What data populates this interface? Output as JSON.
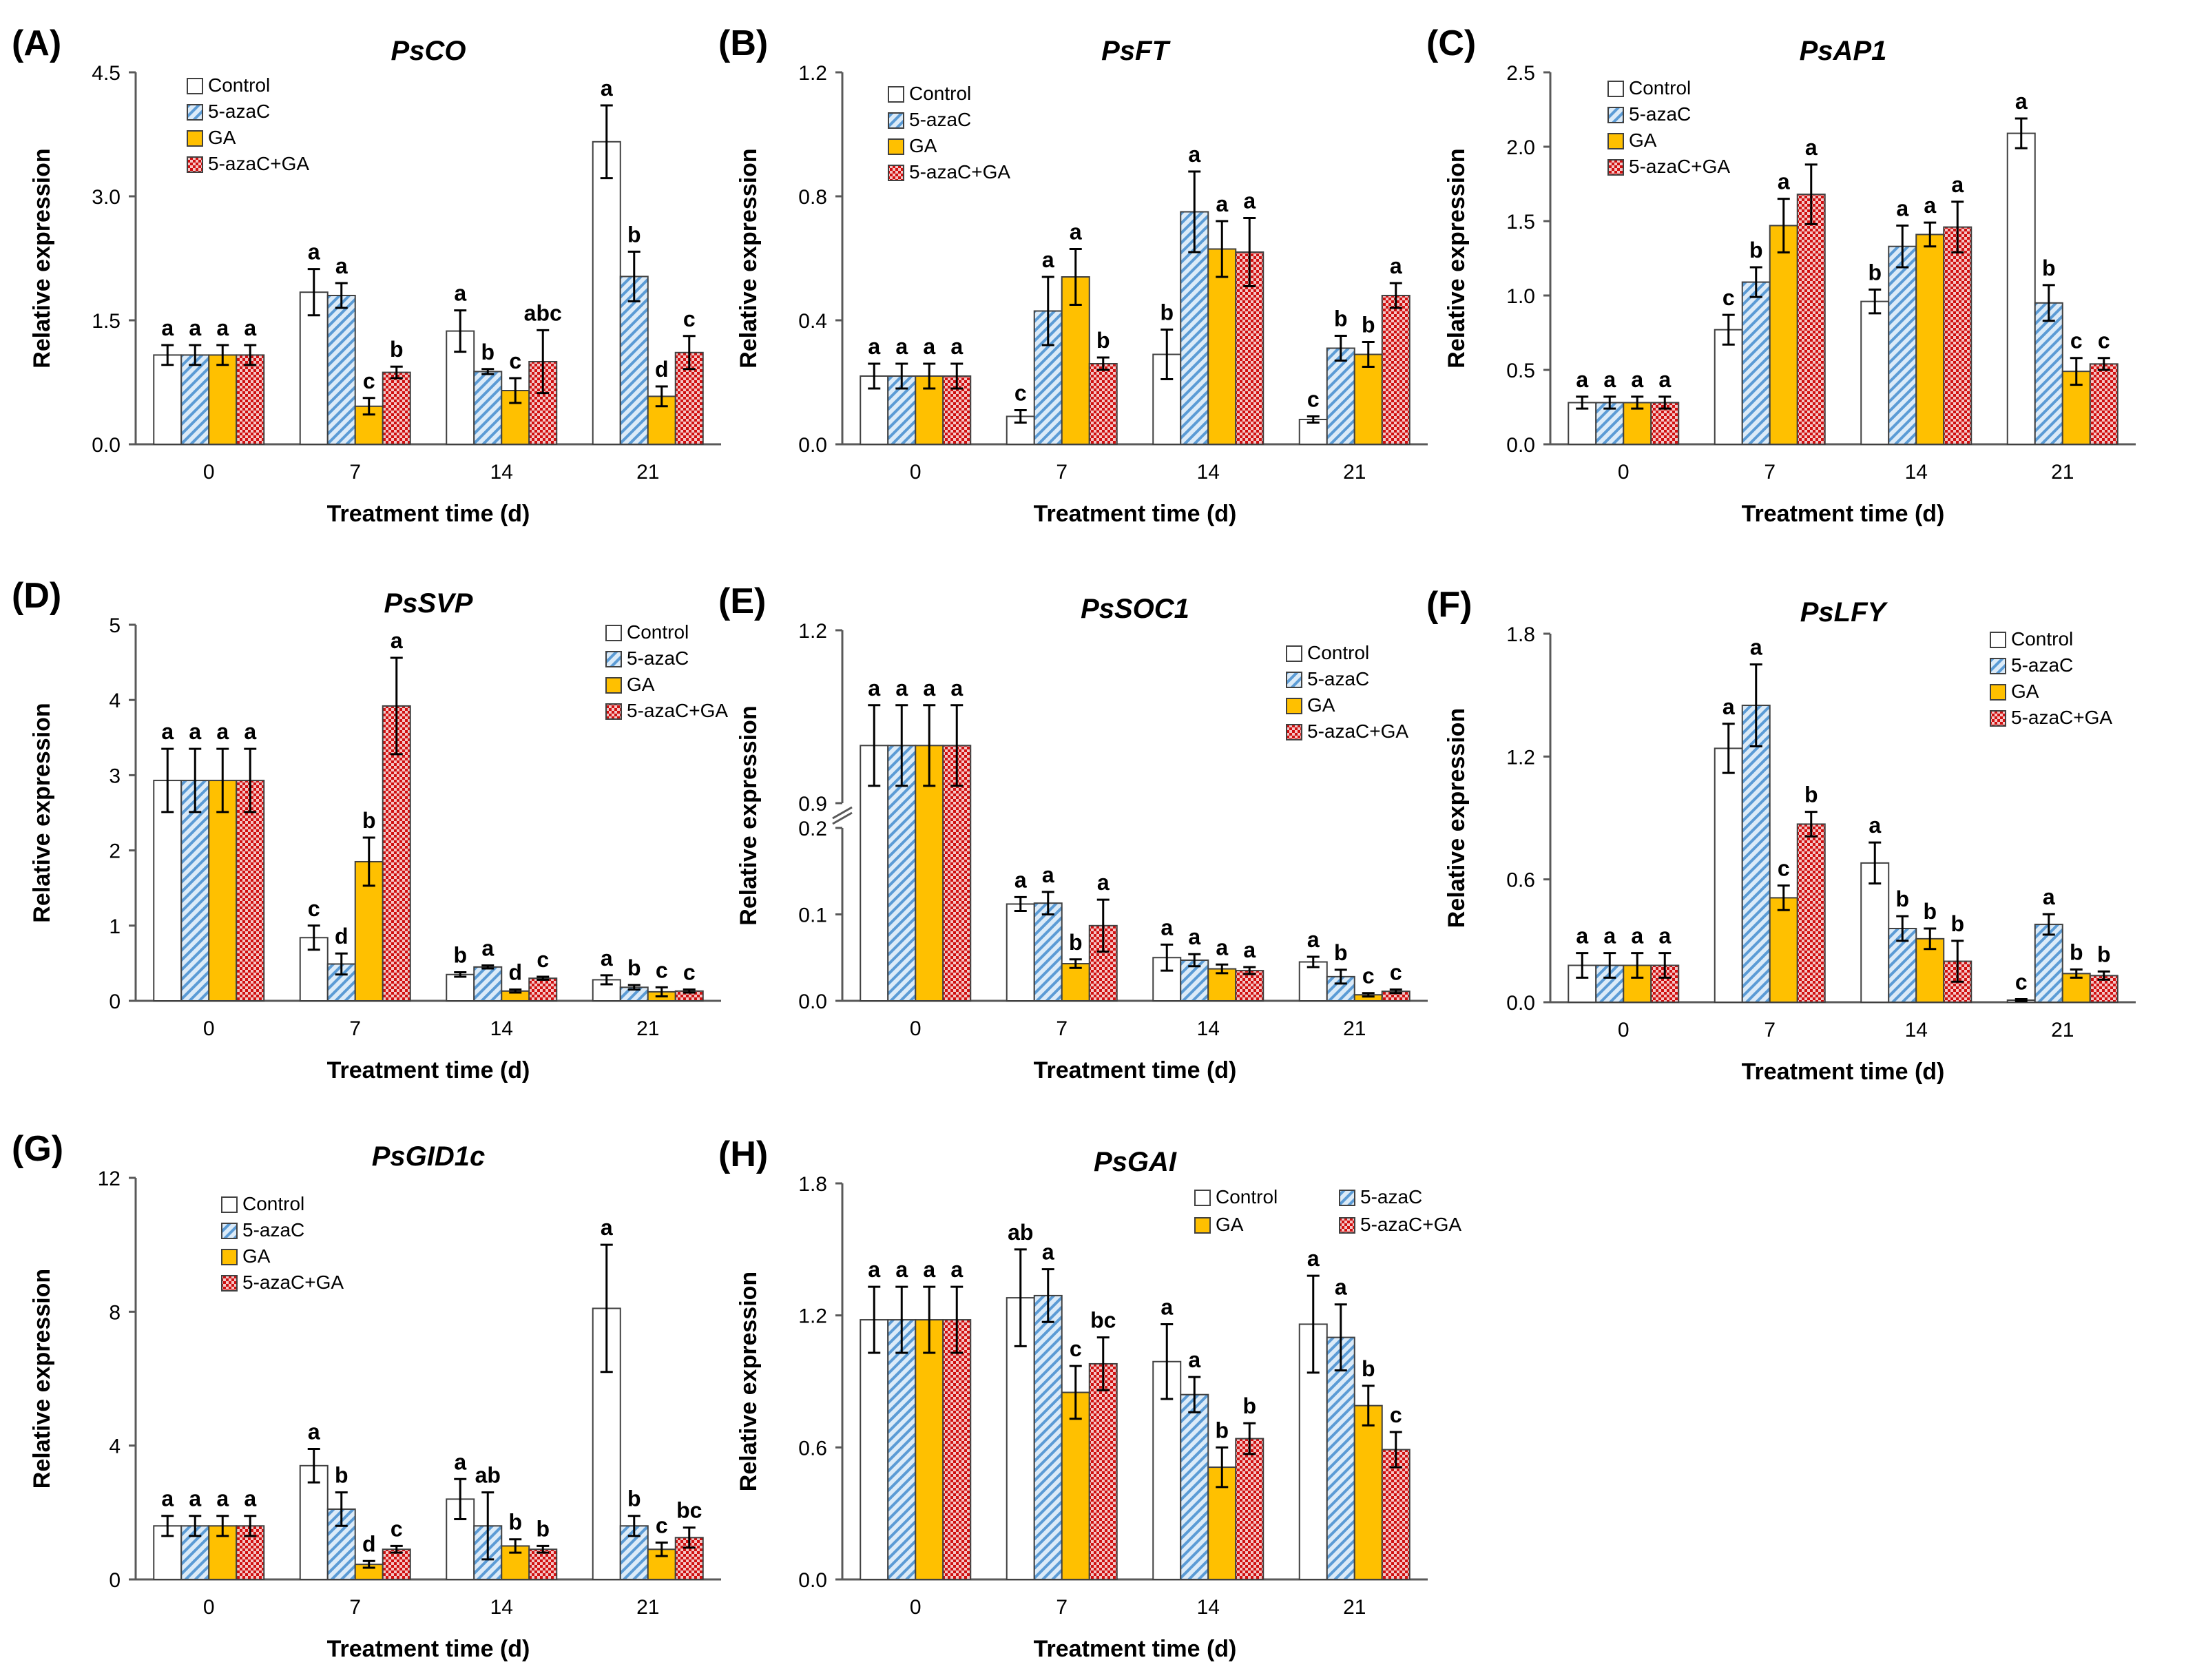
{
  "figure": {
    "legend_labels": [
      "Control",
      "5-azaC",
      "GA",
      "5-azaC+GA"
    ],
    "series_colors": {
      "control": "#ffffff",
      "azac": "#cfe3f5",
      "ga": "#ffc000",
      "azacga": "#f2b5b5"
    },
    "accent_colors": {
      "azac_stripe": "#5b9bd5",
      "azacga_dot": "#c00000",
      "axis": "#595959",
      "text": "#000000"
    }
  },
  "chart_data": [
    {
      "panel": "(A)",
      "title": "PsCO",
      "type": "bar",
      "xlabel": "Treatment time (d)",
      "ylabel": "Relative expression",
      "categories": [
        "0",
        "7",
        "14",
        "21"
      ],
      "ylim": [
        0,
        4.5
      ],
      "yticks": [
        "0.0",
        "1.5",
        "3.0",
        "4.5"
      ],
      "legend_position": "top-left",
      "series": [
        {
          "name": "Control",
          "values": [
            1.08,
            1.84,
            1.37,
            3.66
          ],
          "errors": [
            0.12,
            0.28,
            0.25,
            0.44
          ],
          "labels": [
            "a",
            "a",
            "a",
            "a"
          ]
        },
        {
          "name": "5-azaC",
          "values": [
            1.08,
            1.8,
            0.88,
            2.03
          ],
          "errors": [
            0.12,
            0.15,
            0.03,
            0.3
          ],
          "labels": [
            "a",
            "a",
            "b",
            "b"
          ]
        },
        {
          "name": "GA",
          "values": [
            1.08,
            0.46,
            0.65,
            0.58
          ],
          "errors": [
            0.12,
            0.1,
            0.15,
            0.12
          ],
          "labels": [
            "a",
            "c",
            "c",
            "d"
          ]
        },
        {
          "name": "5-azaC+GA",
          "values": [
            1.08,
            0.87,
            1.0,
            1.11
          ],
          "errors": [
            0.12,
            0.07,
            0.38,
            0.2
          ],
          "labels": [
            "a",
            "b",
            "abc",
            "c"
          ]
        }
      ]
    },
    {
      "panel": "(B)",
      "title": "PsFT",
      "type": "bar",
      "xlabel": "Treatment time (d)",
      "ylabel": "Relative expression",
      "categories": [
        "0",
        "7",
        "14",
        "21"
      ],
      "ylim": [
        0,
        1.2
      ],
      "yticks": [
        "0.0",
        "0.4",
        "0.8",
        "1.2"
      ],
      "legend_position": "top-left",
      "series": [
        {
          "name": "Control",
          "values": [
            0.22,
            0.09,
            0.29,
            0.08
          ],
          "errors": [
            0.04,
            0.02,
            0.08,
            0.01
          ],
          "labels": [
            "a",
            "c",
            "b",
            "c"
          ]
        },
        {
          "name": "5-azaC",
          "values": [
            0.22,
            0.43,
            0.75,
            0.31
          ],
          "errors": [
            0.04,
            0.11,
            0.13,
            0.04
          ],
          "labels": [
            "a",
            "a",
            "a",
            "b"
          ]
        },
        {
          "name": "GA",
          "values": [
            0.22,
            0.54,
            0.63,
            0.29
          ],
          "errors": [
            0.04,
            0.09,
            0.09,
            0.04
          ],
          "labels": [
            "a",
            "a",
            "a",
            "b"
          ]
        },
        {
          "name": "5-azaC+GA",
          "values": [
            0.22,
            0.26,
            0.62,
            0.48
          ],
          "errors": [
            0.04,
            0.02,
            0.11,
            0.04
          ],
          "labels": [
            "a",
            "b",
            "a",
            "a"
          ]
        }
      ]
    },
    {
      "panel": "(C)",
      "title": "PsAP1",
      "type": "bar",
      "xlabel": "Treatment time (d)",
      "ylabel": "Relative expression",
      "categories": [
        "0",
        "7",
        "14",
        "21"
      ],
      "ylim": [
        0,
        2.5
      ],
      "yticks": [
        "0.0",
        "0.5",
        "1.0",
        "1.5",
        "2.0",
        "2.5"
      ],
      "legend_position": "top-left",
      "series": [
        {
          "name": "Control",
          "values": [
            0.28,
            0.77,
            0.96,
            2.09
          ],
          "errors": [
            0.04,
            0.1,
            0.08,
            0.1
          ],
          "labels": [
            "a",
            "c",
            "b",
            "a"
          ]
        },
        {
          "name": "5-azaC",
          "values": [
            0.28,
            1.09,
            1.33,
            0.95
          ],
          "errors": [
            0.04,
            0.1,
            0.14,
            0.12
          ],
          "labels": [
            "a",
            "b",
            "a",
            "b"
          ]
        },
        {
          "name": "GA",
          "values": [
            0.28,
            1.47,
            1.41,
            0.49
          ],
          "errors": [
            0.04,
            0.18,
            0.08,
            0.09
          ],
          "labels": [
            "a",
            "a",
            "a",
            "c"
          ]
        },
        {
          "name": "5-azaC+GA",
          "values": [
            0.28,
            1.68,
            1.46,
            0.54
          ],
          "errors": [
            0.04,
            0.2,
            0.17,
            0.04
          ],
          "labels": [
            "a",
            "a",
            "a",
            "c"
          ]
        }
      ]
    },
    {
      "panel": "(D)",
      "title": "PsSVP",
      "type": "bar",
      "xlabel": "Treatment time (d)",
      "ylabel": "Relative expression",
      "categories": [
        "0",
        "7",
        "14",
        "21"
      ],
      "ylim": [
        0,
        5
      ],
      "yticks": [
        "0",
        "1",
        "2",
        "3",
        "4",
        "5"
      ],
      "legend_position": "top-right",
      "series": [
        {
          "name": "Control",
          "values": [
            2.93,
            0.84,
            0.35,
            0.28
          ],
          "errors": [
            0.42,
            0.16,
            0.03,
            0.06
          ],
          "labels": [
            "a",
            "c",
            "b",
            "a"
          ]
        },
        {
          "name": "5-azaC",
          "values": [
            2.93,
            0.49,
            0.45,
            0.18
          ],
          "errors": [
            0.42,
            0.14,
            0.02,
            0.03
          ],
          "labels": [
            "a",
            "d",
            "a",
            "b"
          ]
        },
        {
          "name": "GA",
          "values": [
            2.93,
            1.85,
            0.13,
            0.12
          ],
          "errors": [
            0.42,
            0.32,
            0.02,
            0.06
          ],
          "labels": [
            "a",
            "b",
            "d",
            "c"
          ]
        },
        {
          "name": "5-azaC+GA",
          "values": [
            2.93,
            3.92,
            0.3,
            0.13
          ],
          "errors": [
            0.42,
            0.64,
            0.02,
            0.02
          ],
          "labels": [
            "a",
            "a",
            "c",
            "c"
          ]
        }
      ]
    },
    {
      "panel": "(E)",
      "title": "PsSOC1",
      "type": "bar",
      "xlabel": "Treatment time (d)",
      "ylabel": "Relative expression",
      "categories": [
        "0",
        "7",
        "14",
        "21"
      ],
      "ylim": [
        0,
        1.2
      ],
      "axis_break": [
        0.2,
        0.9
      ],
      "yticks": [
        "0.0",
        "0.1",
        "0.2",
        "0.9",
        "1.2"
      ],
      "legend_position": "top-right",
      "series": [
        {
          "name": "Control",
          "values": [
            1.0,
            0.112,
            0.05,
            0.045
          ],
          "errors": [
            0.07,
            0.008,
            0.015,
            0.006
          ],
          "labels": [
            "a",
            "a",
            "a",
            "a"
          ]
        },
        {
          "name": "5-azaC",
          "values": [
            1.0,
            0.113,
            0.047,
            0.028
          ],
          "errors": [
            0.07,
            0.013,
            0.007,
            0.008
          ],
          "labels": [
            "a",
            "a",
            "a",
            "b"
          ]
        },
        {
          "name": "GA",
          "values": [
            1.0,
            0.043,
            0.037,
            0.007
          ],
          "errors": [
            0.07,
            0.005,
            0.005,
            0.002
          ],
          "labels": [
            "a",
            "b",
            "a",
            "c"
          ]
        },
        {
          "name": "5-azaC+GA",
          "values": [
            1.0,
            0.087,
            0.035,
            0.011
          ],
          "errors": [
            0.07,
            0.03,
            0.004,
            0.002
          ],
          "labels": [
            "a",
            "a",
            "a",
            "c"
          ]
        }
      ]
    },
    {
      "panel": "(F)",
      "title": "PsLFY",
      "type": "bar",
      "xlabel": "Treatment time (d)",
      "ylabel": "Relative expression",
      "categories": [
        "0",
        "7",
        "14",
        "21"
      ],
      "ylim": [
        0,
        1.8
      ],
      "yticks": [
        "0.0",
        "0.6",
        "1.2",
        "1.8"
      ],
      "legend_position": "top-right",
      "series": [
        {
          "name": "Control",
          "values": [
            0.18,
            1.24,
            0.68,
            0.01
          ],
          "errors": [
            0.06,
            0.12,
            0.1,
            0.005
          ],
          "labels": [
            "a",
            "a",
            "a",
            "c"
          ]
        },
        {
          "name": "5-azaC",
          "values": [
            0.18,
            1.45,
            0.36,
            0.38
          ],
          "errors": [
            0.06,
            0.2,
            0.06,
            0.05
          ],
          "labels": [
            "a",
            "a",
            "b",
            "a"
          ]
        },
        {
          "name": "GA",
          "values": [
            0.18,
            0.51,
            0.31,
            0.14
          ],
          "errors": [
            0.06,
            0.06,
            0.05,
            0.02
          ],
          "labels": [
            "a",
            "c",
            "b",
            "b"
          ]
        },
        {
          "name": "5-azaC+GA",
          "values": [
            0.18,
            0.87,
            0.2,
            0.13
          ],
          "errors": [
            0.06,
            0.06,
            0.1,
            0.02
          ],
          "labels": [
            "a",
            "b",
            "b",
            "b"
          ]
        }
      ]
    },
    {
      "panel": "(G)",
      "title": "PsGID1c",
      "type": "bar",
      "xlabel": "Treatment time (d)",
      "ylabel": "Relative expression",
      "categories": [
        "0",
        "7",
        "14",
        "21"
      ],
      "ylim": [
        0,
        12
      ],
      "yticks": [
        "0",
        "4",
        "8",
        "12"
      ],
      "legend_position": "top-left",
      "series": [
        {
          "name": "Control",
          "values": [
            1.6,
            3.4,
            2.4,
            8.1
          ],
          "errors": [
            0.3,
            0.5,
            0.6,
            1.9
          ],
          "labels": [
            "a",
            "a",
            "a",
            "a"
          ]
        },
        {
          "name": "5-azaC",
          "values": [
            1.6,
            2.1,
            1.6,
            1.6
          ],
          "errors": [
            0.3,
            0.5,
            1.0,
            0.3
          ],
          "labels": [
            "a",
            "b",
            "ab",
            "b"
          ]
        },
        {
          "name": "GA",
          "values": [
            1.6,
            0.45,
            1.0,
            0.9
          ],
          "errors": [
            0.3,
            0.1,
            0.2,
            0.2
          ],
          "labels": [
            "a",
            "d",
            "b",
            "c"
          ]
        },
        {
          "name": "5-azaC+GA",
          "values": [
            1.6,
            0.9,
            0.9,
            1.25
          ],
          "errors": [
            0.3,
            0.1,
            0.1,
            0.3
          ],
          "labels": [
            "a",
            "c",
            "b",
            "bc"
          ]
        }
      ]
    },
    {
      "panel": "(H)",
      "title": "PsGAI",
      "type": "bar",
      "xlabel": "Treatment time (d)",
      "ylabel": "Relative expression",
      "categories": [
        "0",
        "7",
        "14",
        "21"
      ],
      "ylim": [
        0,
        1.8
      ],
      "yticks": [
        "0.0",
        "0.6",
        "1.2",
        "1.8"
      ],
      "legend_position": "top-right",
      "series": [
        {
          "name": "Control",
          "values": [
            1.18,
            1.28,
            0.99,
            1.16
          ],
          "errors": [
            0.15,
            0.22,
            0.17,
            0.22
          ],
          "labels": [
            "a",
            "ab",
            "a",
            "a"
          ]
        },
        {
          "name": "5-azaC",
          "values": [
            1.18,
            1.29,
            0.84,
            1.1
          ],
          "errors": [
            0.15,
            0.12,
            0.08,
            0.15
          ],
          "labels": [
            "a",
            "a",
            "a",
            "a"
          ]
        },
        {
          "name": "GA",
          "values": [
            1.18,
            0.85,
            0.51,
            0.79
          ],
          "errors": [
            0.15,
            0.12,
            0.09,
            0.09
          ],
          "labels": [
            "a",
            "c",
            "b",
            "b"
          ]
        },
        {
          "name": "5-azaC+GA",
          "values": [
            1.18,
            0.98,
            0.64,
            0.59
          ],
          "errors": [
            0.15,
            0.12,
            0.07,
            0.08
          ],
          "labels": [
            "a",
            "bc",
            "b",
            "c"
          ]
        }
      ]
    }
  ]
}
